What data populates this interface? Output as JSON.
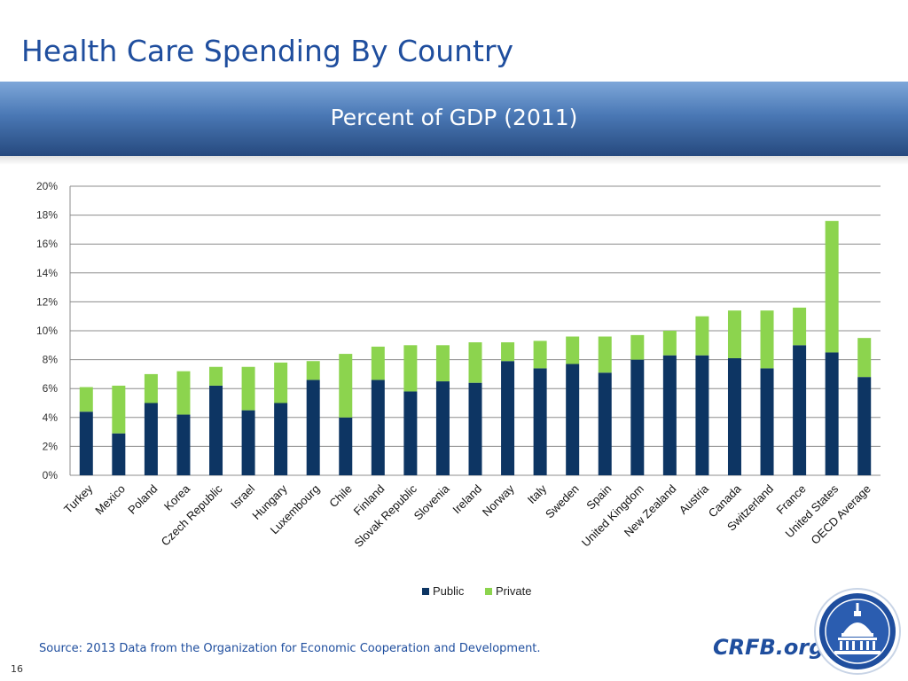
{
  "slide": {
    "title": "Health Care Spending By Country",
    "source": "Source: 2013 Data from the Organization for Economic Cooperation and Development.",
    "brand": "CRFB.org",
    "page_number": "16"
  },
  "colors": {
    "public": "#0d3563",
    "private": "#8cd44e",
    "title": "#1f4e9e",
    "grid": "#8c8c8c"
  },
  "chart_data": {
    "type": "bar",
    "stacked": true,
    "title": "Percent of GDP (2011)",
    "categories": [
      "Turkey",
      "Mexico",
      "Poland",
      "Korea",
      "Czech Republic",
      "Israel",
      "Hungary",
      "Luxembourg",
      "Chile",
      "Finland",
      "Slovak Republic",
      "Slovenia",
      "Ireland",
      "Norway",
      "Italy",
      "Sweden",
      "Spain",
      "United Kingdom",
      "New Zealand",
      "Austria",
      "Canada",
      "Switzerland",
      "France",
      "United States",
      "OECD Average"
    ],
    "series": [
      {
        "name": "Public",
        "color": "#0d3563",
        "values": [
          4.4,
          2.9,
          5.0,
          4.2,
          6.2,
          4.5,
          5.0,
          6.6,
          4.0,
          6.6,
          5.8,
          6.5,
          6.4,
          7.9,
          7.4,
          7.7,
          7.1,
          8.0,
          8.3,
          8.3,
          8.1,
          7.4,
          9.0,
          8.5,
          6.8
        ]
      },
      {
        "name": "Private",
        "color": "#8cd44e",
        "values": [
          1.7,
          3.3,
          2.0,
          3.0,
          1.3,
          3.0,
          2.8,
          1.3,
          4.4,
          2.3,
          3.2,
          2.5,
          2.8,
          1.3,
          1.9,
          1.9,
          2.5,
          1.7,
          1.7,
          2.7,
          3.3,
          4.0,
          2.6,
          9.1,
          2.7
        ]
      }
    ],
    "y_ticks": [
      "0%",
      "2%",
      "4%",
      "6%",
      "8%",
      "10%",
      "12%",
      "14%",
      "16%",
      "18%",
      "20%"
    ],
    "ylim": [
      0,
      20
    ],
    "xlabel": "",
    "ylabel": "",
    "grid": true,
    "legend_position": "bottom"
  }
}
